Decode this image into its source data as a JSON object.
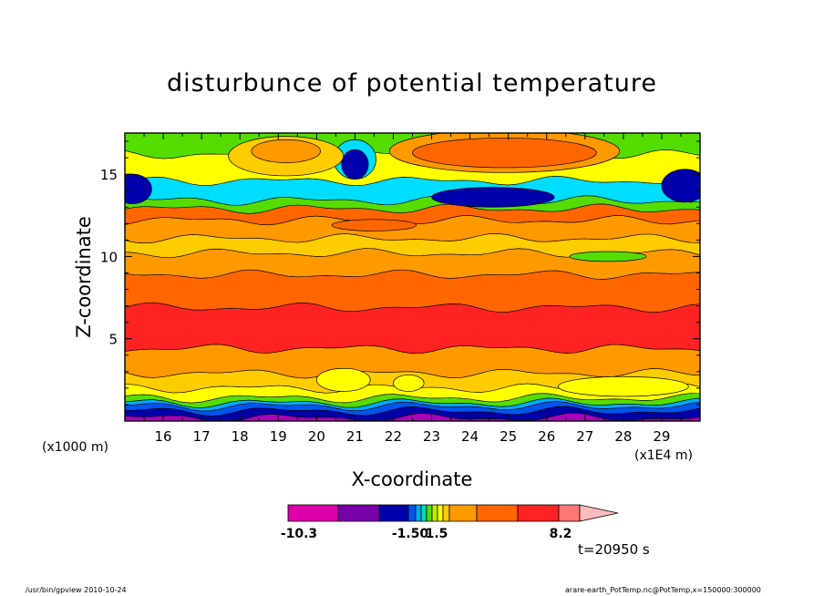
{
  "chart_data": {
    "type": "heatmap",
    "title": "disturbunce of potential temperature",
    "xlabel": "X-coordinate",
    "ylabel": "Z-coordinate",
    "x_unit_note": "(x1E4 m)",
    "y_unit_note": "(x1000 m)",
    "x_ticks": [
      16,
      17,
      18,
      19,
      20,
      21,
      22,
      23,
      24,
      25,
      26,
      27,
      28,
      29
    ],
    "y_ticks": [
      5,
      10,
      15
    ],
    "xlim": [
      15.0,
      30.0
    ],
    "ylim": [
      0.0,
      17.5
    ],
    "colorbar": {
      "labels": [
        "-10.3",
        "-1.50",
        "1.5",
        "8.2"
      ],
      "colors": [
        "#dd00aa",
        "#7700aa",
        "#0000aa",
        "#0055ee",
        "#00aaff",
        "#00ddaa",
        "#55dd00",
        "#bbee00",
        "#ffff00",
        "#ffcc00",
        "#ff9900",
        "#ff6600",
        "#ff2222",
        "#ff7777",
        "#ffbbbb"
      ]
    },
    "layers": [
      {
        "z_bottom": 0.0,
        "z_top": 0.2,
        "color": "#aa00bb"
      },
      {
        "z_bottom": 0.2,
        "z_top": 0.6,
        "color": "#0000aa"
      },
      {
        "z_bottom": 0.6,
        "z_top": 0.9,
        "color": "#0055ee"
      },
      {
        "z_bottom": 0.9,
        "z_top": 1.1,
        "color": "#00aaff"
      },
      {
        "z_bottom": 1.1,
        "z_top": 1.4,
        "color": "#55dd00"
      },
      {
        "z_bottom": 1.4,
        "z_top": 2.0,
        "color": "#ffff00"
      },
      {
        "z_bottom": 2.0,
        "z_top": 2.9,
        "color": "#ffcc00"
      },
      {
        "z_bottom": 2.9,
        "z_top": 4.4,
        "color": "#ff9900"
      },
      {
        "z_bottom": 4.4,
        "z_top": 6.9,
        "color": "#ff2222"
      },
      {
        "z_bottom": 6.9,
        "z_top": 8.9,
        "color": "#ff6600"
      },
      {
        "z_bottom": 8.9,
        "z_top": 10.2,
        "color": "#ff9900"
      },
      {
        "z_bottom": 10.2,
        "z_top": 11.1,
        "color": "#ffcc00"
      },
      {
        "z_bottom": 11.1,
        "z_top": 12.2,
        "color": "#ff9900"
      },
      {
        "z_bottom": 12.2,
        "z_top": 12.9,
        "color": "#ff6600"
      },
      {
        "z_bottom": 12.9,
        "z_top": 13.4,
        "color": "#55dd00"
      },
      {
        "z_bottom": 13.4,
        "z_top": 14.6,
        "color": "#00ddff"
      },
      {
        "z_bottom": 14.6,
        "z_top": 16.2,
        "color": "#ffff00"
      },
      {
        "z_bottom": 16.2,
        "z_top": 17.5,
        "color": "#55dd00"
      }
    ],
    "features": [
      {
        "x": 15.2,
        "z": 14.1,
        "rx": 0.5,
        "rz": 0.9,
        "color": "#0000aa"
      },
      {
        "x": 29.6,
        "z": 14.3,
        "rx": 0.6,
        "rz": 1.0,
        "color": "#0000aa"
      },
      {
        "x": 21.0,
        "z": 15.9,
        "rx": 0.55,
        "rz": 1.2,
        "color": "#00ddff"
      },
      {
        "x": 21.0,
        "z": 15.6,
        "rx": 0.35,
        "rz": 0.9,
        "color": "#0000aa"
      },
      {
        "x": 19.2,
        "z": 16.1,
        "rx": 1.5,
        "rz": 1.2,
        "color": "#ffcc00"
      },
      {
        "x": 19.2,
        "z": 16.4,
        "rx": 0.9,
        "rz": 0.7,
        "color": "#ff9900"
      },
      {
        "x": 24.9,
        "z": 16.4,
        "rx": 3.0,
        "rz": 1.3,
        "color": "#ff9900"
      },
      {
        "x": 24.9,
        "z": 16.3,
        "rx": 2.4,
        "rz": 0.9,
        "color": "#ff6600"
      },
      {
        "x": 24.6,
        "z": 13.6,
        "rx": 1.6,
        "rz": 0.6,
        "color": "#0000aa"
      },
      {
        "x": 21.5,
        "z": 11.9,
        "rx": 1.1,
        "rz": 0.35,
        "color": "#ff6600"
      },
      {
        "x": 27.6,
        "z": 10.0,
        "rx": 1.0,
        "rz": 0.3,
        "color": "#55dd00"
      },
      {
        "x": 20.7,
        "z": 2.5,
        "rx": 0.7,
        "rz": 0.7,
        "color": "#ffff00"
      },
      {
        "x": 22.4,
        "z": 2.3,
        "rx": 0.4,
        "rz": 0.5,
        "color": "#ffff00"
      },
      {
        "x": 28.0,
        "z": 2.1,
        "rx": 1.7,
        "rz": 0.6,
        "color": "#ffff00"
      }
    ]
  },
  "annotations": {
    "time": "t=20950 s"
  },
  "footer": {
    "left": "/usr/bin/gpview   2010-10-24",
    "right": "arare-earth_PotTemp.nc@PotTemp,x=150000:300000"
  }
}
